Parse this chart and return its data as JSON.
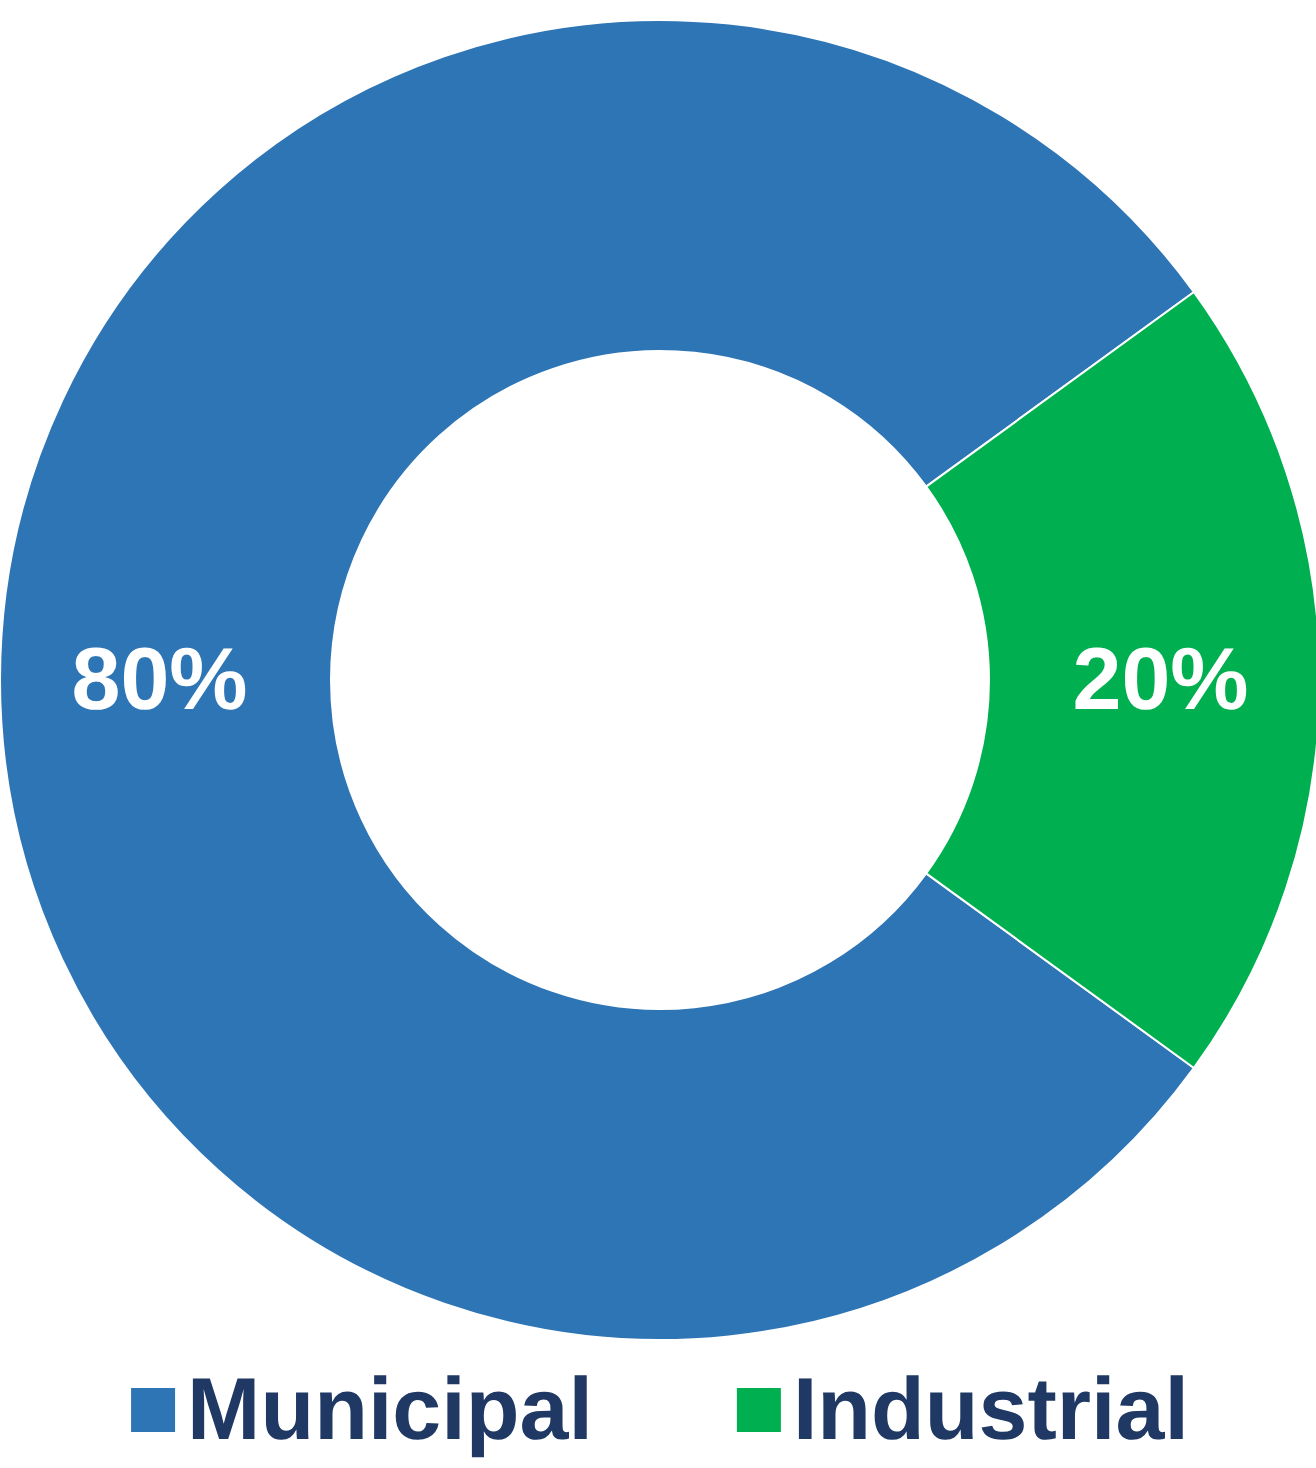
{
  "chart_data": {
    "type": "donut",
    "categories": [
      "Municipal",
      "Industrial"
    ],
    "values": [
      80,
      20
    ],
    "colors": [
      "#2e75b6",
      "#00b050"
    ],
    "value_labels": [
      "80%",
      "20%"
    ],
    "legend": "bottom"
  }
}
